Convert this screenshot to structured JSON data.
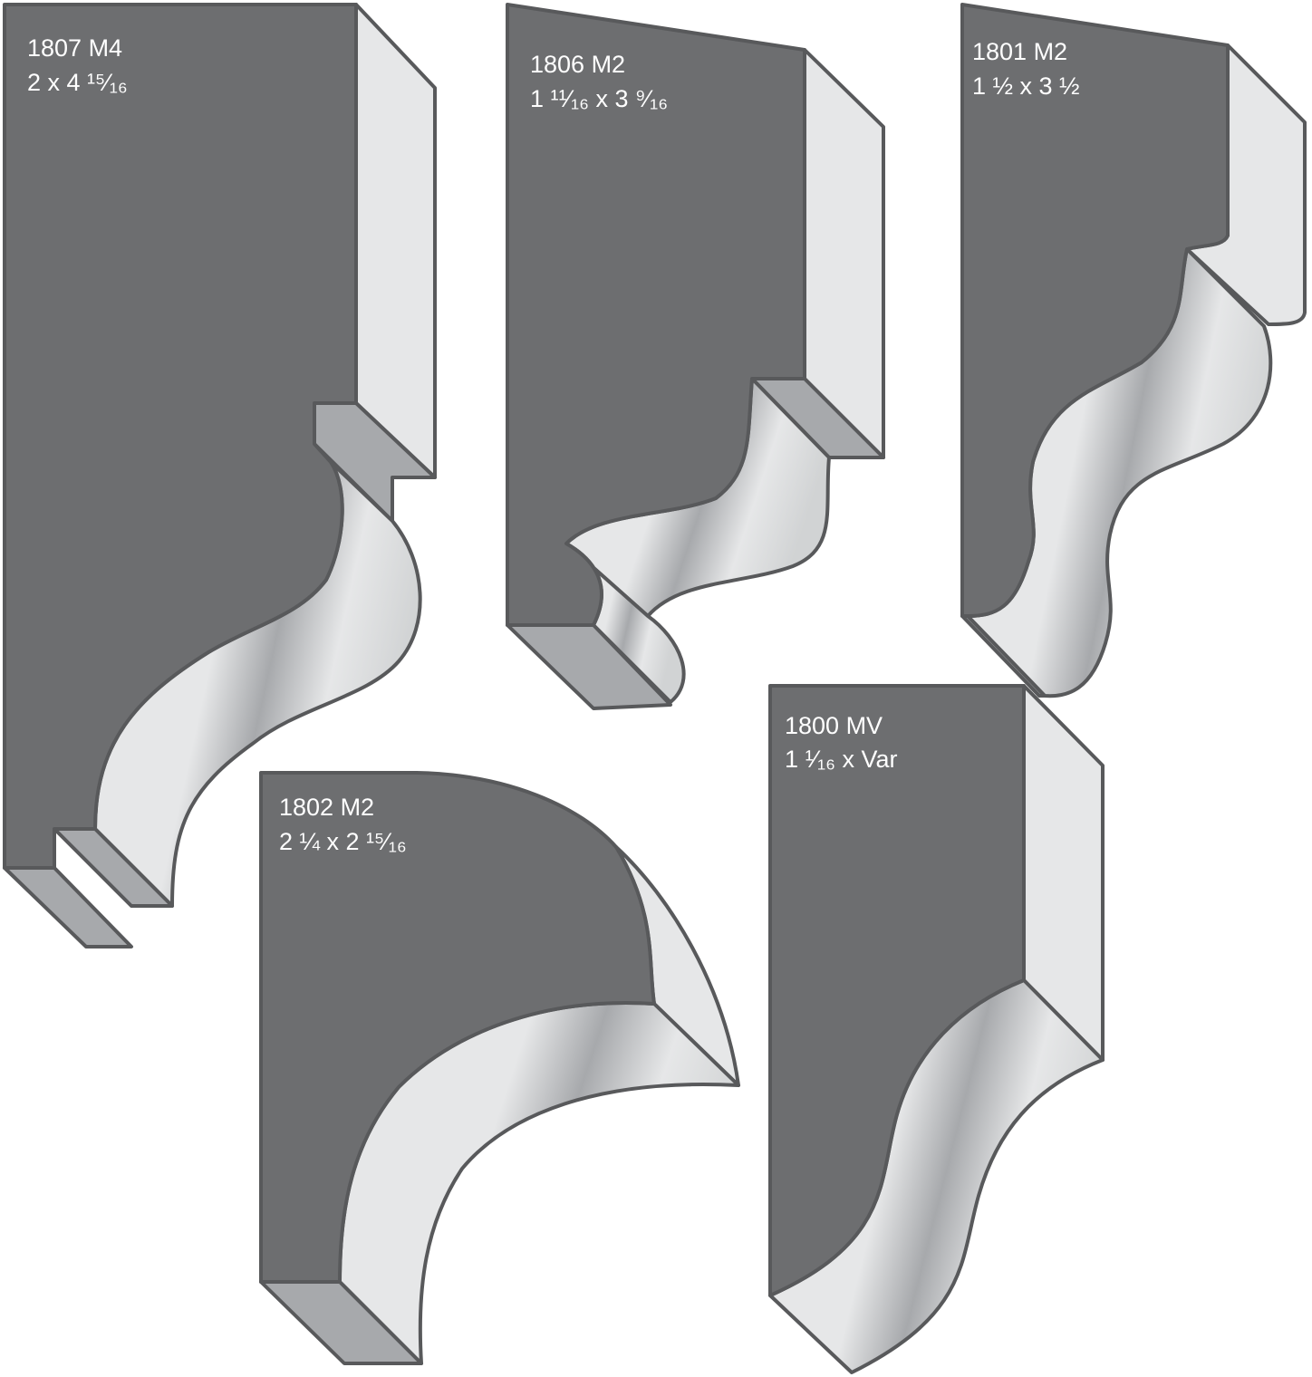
{
  "profiles": [
    {
      "code": "1807 M4",
      "size": "2 x 4 ¹⁵⁄₁₆"
    },
    {
      "code": "1806 M2",
      "size": "1 ¹¹⁄₁₆ x 3 ⁹⁄₁₆"
    },
    {
      "code": "1801 M2",
      "size": "1 ½ x 3 ½"
    },
    {
      "code": "1802 M2",
      "size": "2 ¼ x 2 ¹⁵⁄₁₆"
    },
    {
      "code": "1800 MV",
      "size": "1 ¹⁄₁₆ x Var"
    }
  ]
}
